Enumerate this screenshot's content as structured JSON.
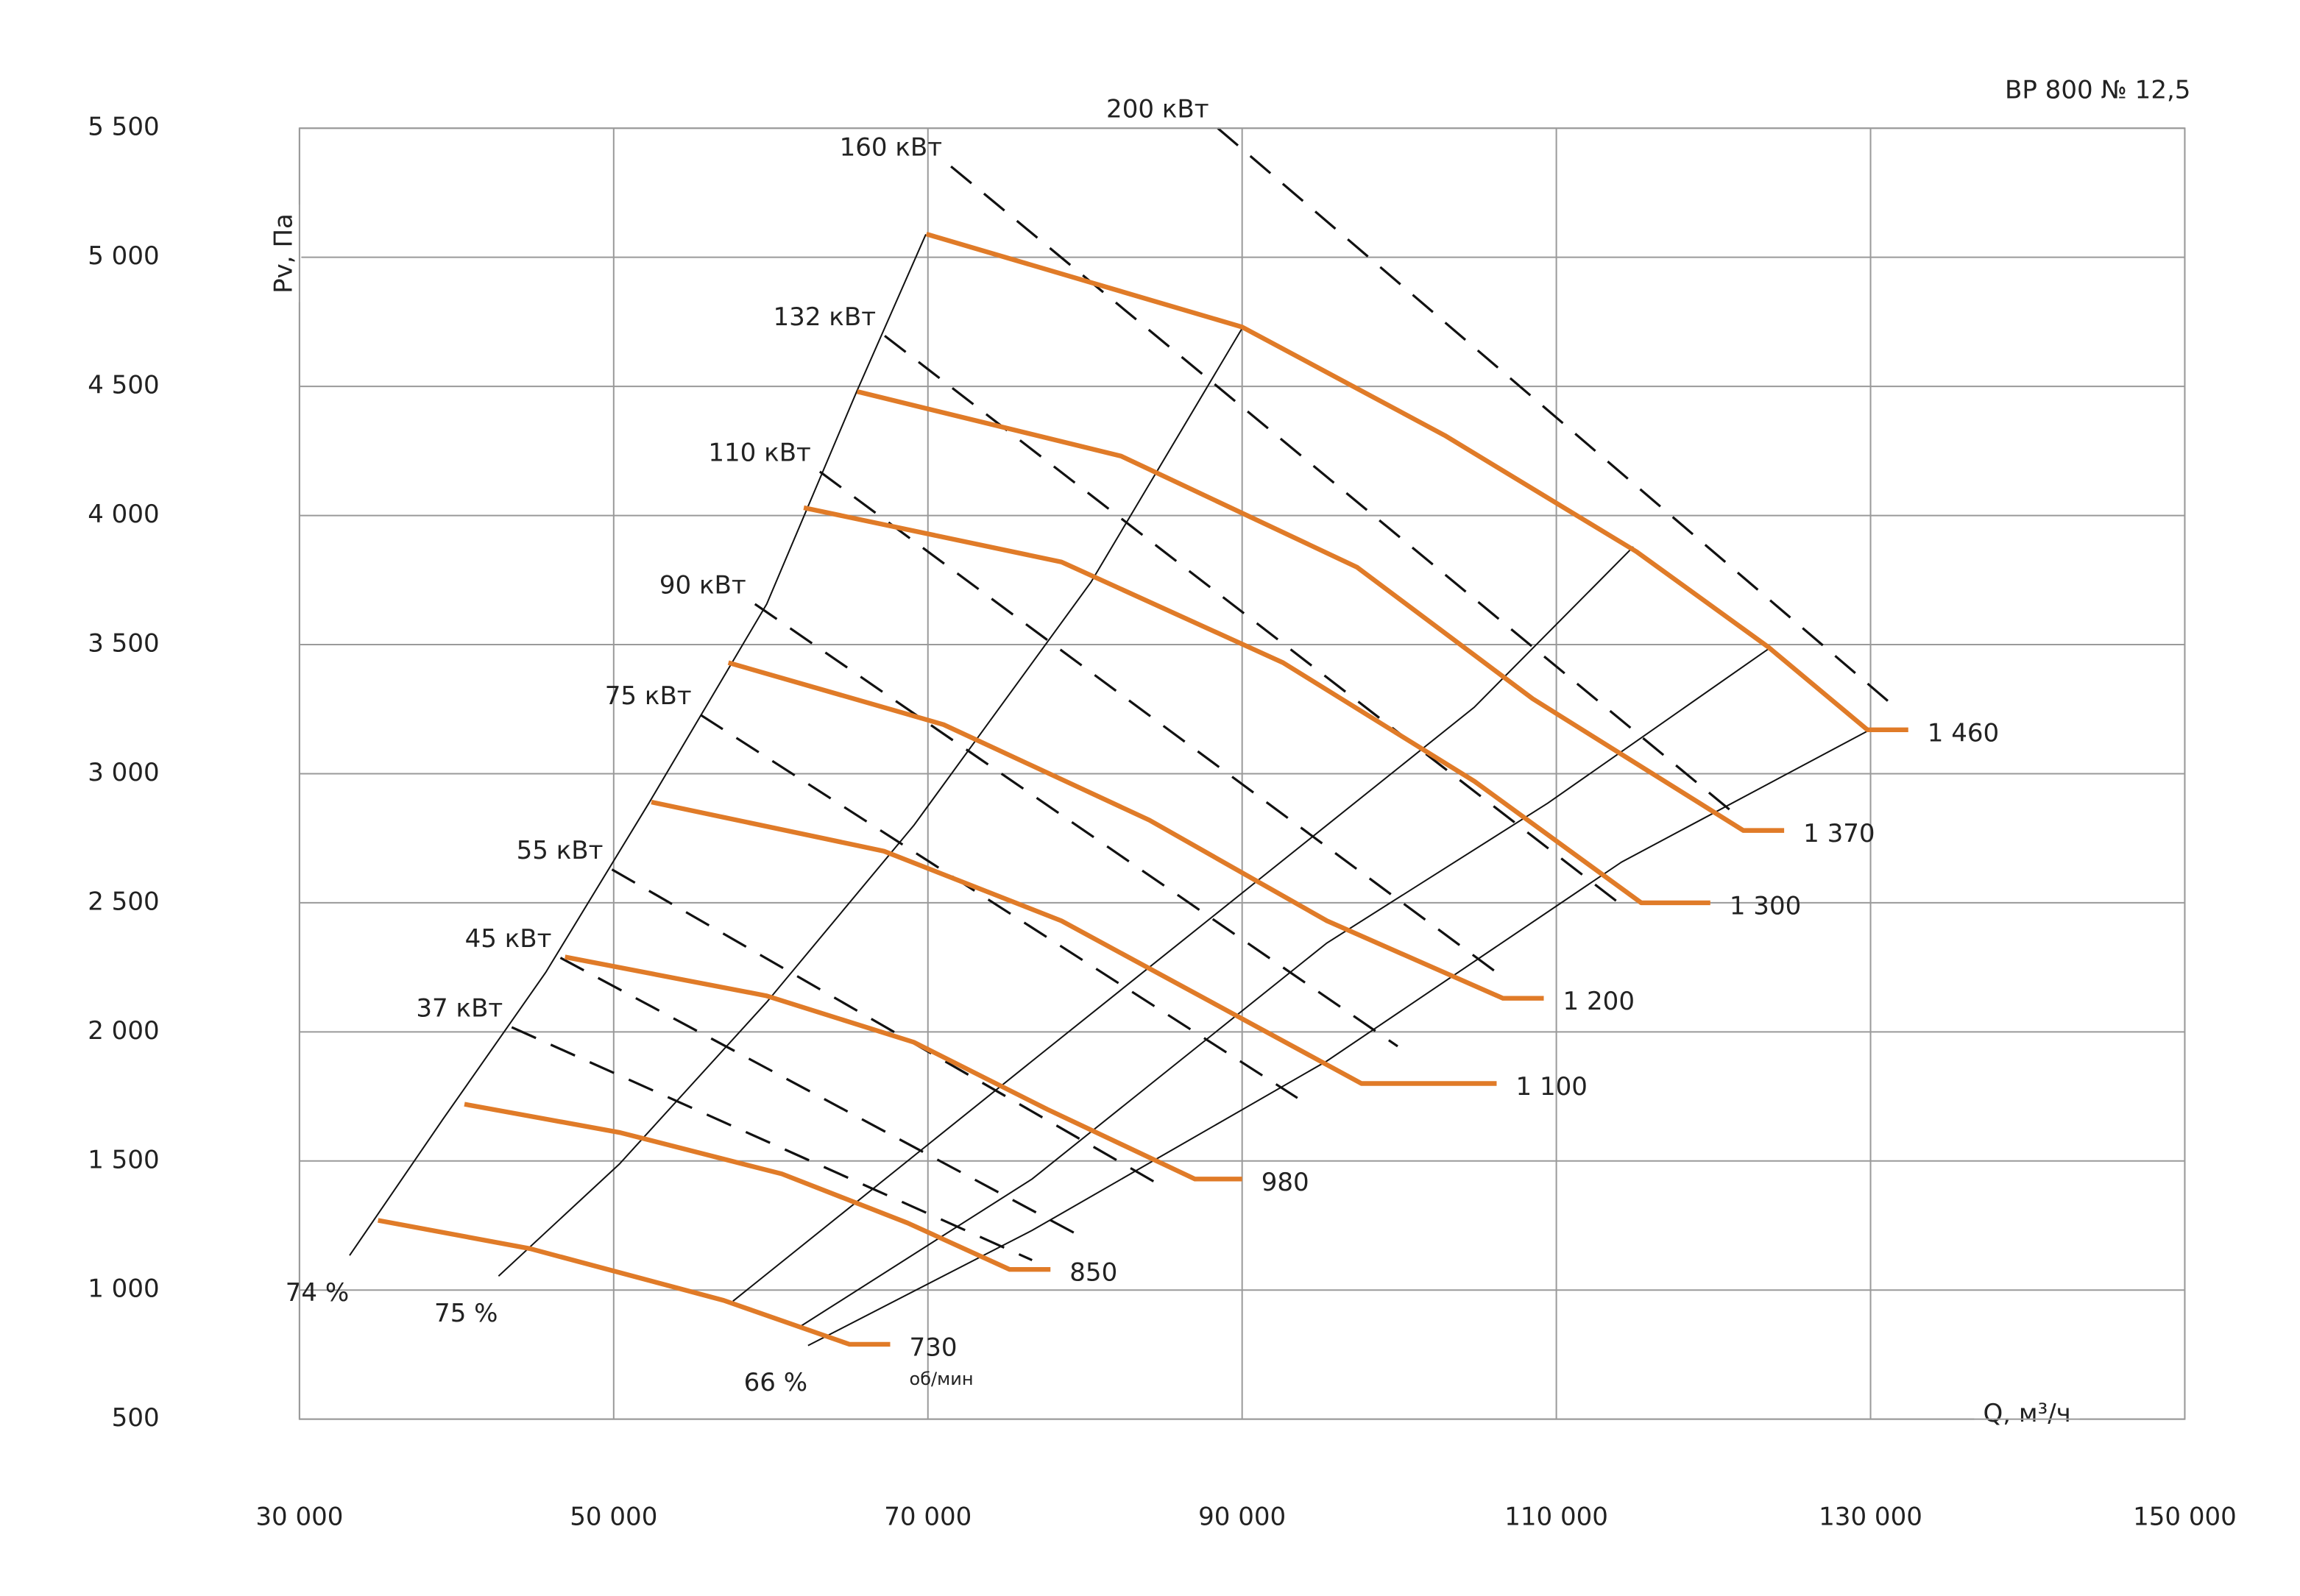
{
  "chart_data": {
    "type": "line",
    "title": "ВР 800 № 12,5",
    "x_label": "Q, м³/ч",
    "y_label": "Pv, Па",
    "xlim": [
      30000,
      150000
    ],
    "xticks": [
      {
        "value": 30000,
        "label": "30 000"
      },
      {
        "value": 50000,
        "label": "50 000"
      },
      {
        "value": 70000,
        "label": "70 000"
      },
      {
        "value": 90000,
        "label": "90 000"
      },
      {
        "value": 110000,
        "label": "110 000"
      },
      {
        "value": 130000,
        "label": "130 000"
      },
      {
        "value": 150000,
        "label": "150 000"
      }
    ],
    "ylim": [
      500,
      5500
    ],
    "yticks": [
      500,
      {
        "value": 1000,
        "label": "1 000"
      },
      {
        "value": 1500,
        "label": "1 500"
      },
      {
        "value": 2000,
        "label": "2 000"
      },
      {
        "value": 2500,
        "label": "2 500"
      },
      {
        "value": 3000,
        "label": "3 000"
      },
      {
        "value": 3500,
        "label": "3 500"
      },
      {
        "value": 4000,
        "label": "4 000"
      },
      {
        "value": 4500,
        "label": "4 500"
      },
      {
        "value": 5000,
        "label": "5 000"
      },
      {
        "value": 5500,
        "label": "5 500"
      }
    ],
    "grid": true,
    "series": [
      {
        "name": "730",
        "unit": "об/мин",
        "color": "#e07b28",
        "x": [
          35000,
          44700,
          57000,
          65000,
          67600
        ],
        "y": [
          1270,
          1160,
          960,
          790,
          790
        ]
      },
      {
        "name": "850",
        "color": "#e07b28",
        "x": [
          40500,
          50400,
          60700,
          68700,
          75200,
          77800
        ],
        "y": [
          1720,
          1610,
          1450,
          1260,
          1080,
          1080
        ]
      },
      {
        "name": "980",
        "color": "#e07b28",
        "x": [
          46900,
          59700,
          69100,
          77600,
          87000,
          90000
        ],
        "y": [
          2290,
          2140,
          1960,
          1700,
          1430,
          1430
        ]
      },
      {
        "name": "1 100",
        "color": "#e07b28",
        "x": [
          52400,
          67200,
          78500,
          87900,
          97600,
          106200
        ],
        "y": [
          2890,
          2700,
          2430,
          2120,
          1800,
          1800
        ]
      },
      {
        "name": "1 200",
        "color": "#e07b28",
        "x": [
          57300,
          71000,
          84100,
          95400,
          106600,
          109200
        ],
        "y": [
          3430,
          3190,
          2820,
          2430,
          2130,
          2130
        ]
      },
      {
        "name": "1 300",
        "color": "#e07b28",
        "x": [
          62100,
          78500,
          92600,
          104800,
          115400,
          119800
        ],
        "y": [
          4030,
          3820,
          3430,
          2970,
          2500,
          2500
        ]
      },
      {
        "name": "1 370",
        "color": "#e07b28",
        "x": [
          65500,
          82300,
          97300,
          108500,
          121900,
          124500
        ],
        "y": [
          4480,
          4230,
          3800,
          3290,
          2780,
          2780
        ]
      },
      {
        "name": "1 460",
        "color": "#e07b28",
        "x": [
          69900,
          90000,
          102900,
          115100,
          123500,
          129800,
          132400
        ],
        "y": [
          5090,
          4730,
          4310,
          3860,
          3490,
          3170,
          3170
        ]
      }
    ],
    "power_lines": [
      {
        "label": "200 кВт",
        "color": "#111111",
        "x": [
          88450,
          131790
        ],
        "y": [
          5500,
          3246
        ]
      },
      {
        "label": "160 кВт",
        "color": "#111111",
        "x": [
          71470,
          121660
        ],
        "y": [
          5352,
          2829
        ]
      },
      {
        "label": "132 кВт",
        "color": "#111111",
        "x": [
          67250,
          113880
        ],
        "y": [
          4696,
          2504
        ]
      },
      {
        "label": "110 кВт",
        "color": "#111111",
        "x": [
          63120,
          106840
        ],
        "y": [
          4170,
          2201
        ]
      },
      {
        "label": "90 кВт",
        "color": "#111111",
        "x": [
          58990,
          99900
        ],
        "y": [
          3657,
          1944
        ]
      },
      {
        "label": "75 кВт",
        "color": "#111111",
        "x": [
          55520,
          93520
        ],
        "y": [
          3228,
          1744
        ]
      },
      {
        "label": "55 кВт",
        "color": "#111111",
        "x": [
          49890,
          85070
        ],
        "y": [
          2629,
          1396
        ]
      },
      {
        "label": "45 кВт",
        "color": "#111111",
        "x": [
          46610,
          79910
        ],
        "y": [
          2287,
          1202
        ]
      },
      {
        "label": "37 кВт",
        "color": "#111111",
        "x": [
          43510,
          76630
        ],
        "y": [
          2018,
          1116
        ]
      }
    ],
    "efficiency_lines": [
      {
        "label": "74 %",
        "color": "#111111",
        "x": [
          33190,
          39100,
          45670,
          52240,
          59740,
          65460,
          69870
        ],
        "y": [
          1134,
          1659,
          2230,
          2886,
          3657,
          4479,
          5089
        ]
      },
      {
        "label": "75 %",
        "color": "#111111",
        "x": [
          42670,
          50360,
          59740,
          69120,
          80380,
          90050
        ],
        "y": [
          1054,
          1488,
          2115,
          2801,
          3742,
          4730
        ]
      },
      {
        "color": "#111111",
        "x": [
          57590,
          76630,
          90700,
          104770,
          114900
        ],
        "y": [
          957,
          1887,
          2572,
          3257,
          3879
        ]
      },
      {
        "color": "#111111",
        "x": [
          61900,
          76630,
          95390,
          109460,
          123540
        ],
        "y": [
          860,
          1430,
          2344,
          2886,
          3485
        ]
      },
      {
        "label": "66 %",
        "color": "#111111",
        "x": [
          62370,
          76630,
          95390,
          114160,
          129830
        ],
        "y": [
          785,
          1231,
          1887,
          2658,
          3166
        ]
      }
    ]
  }
}
